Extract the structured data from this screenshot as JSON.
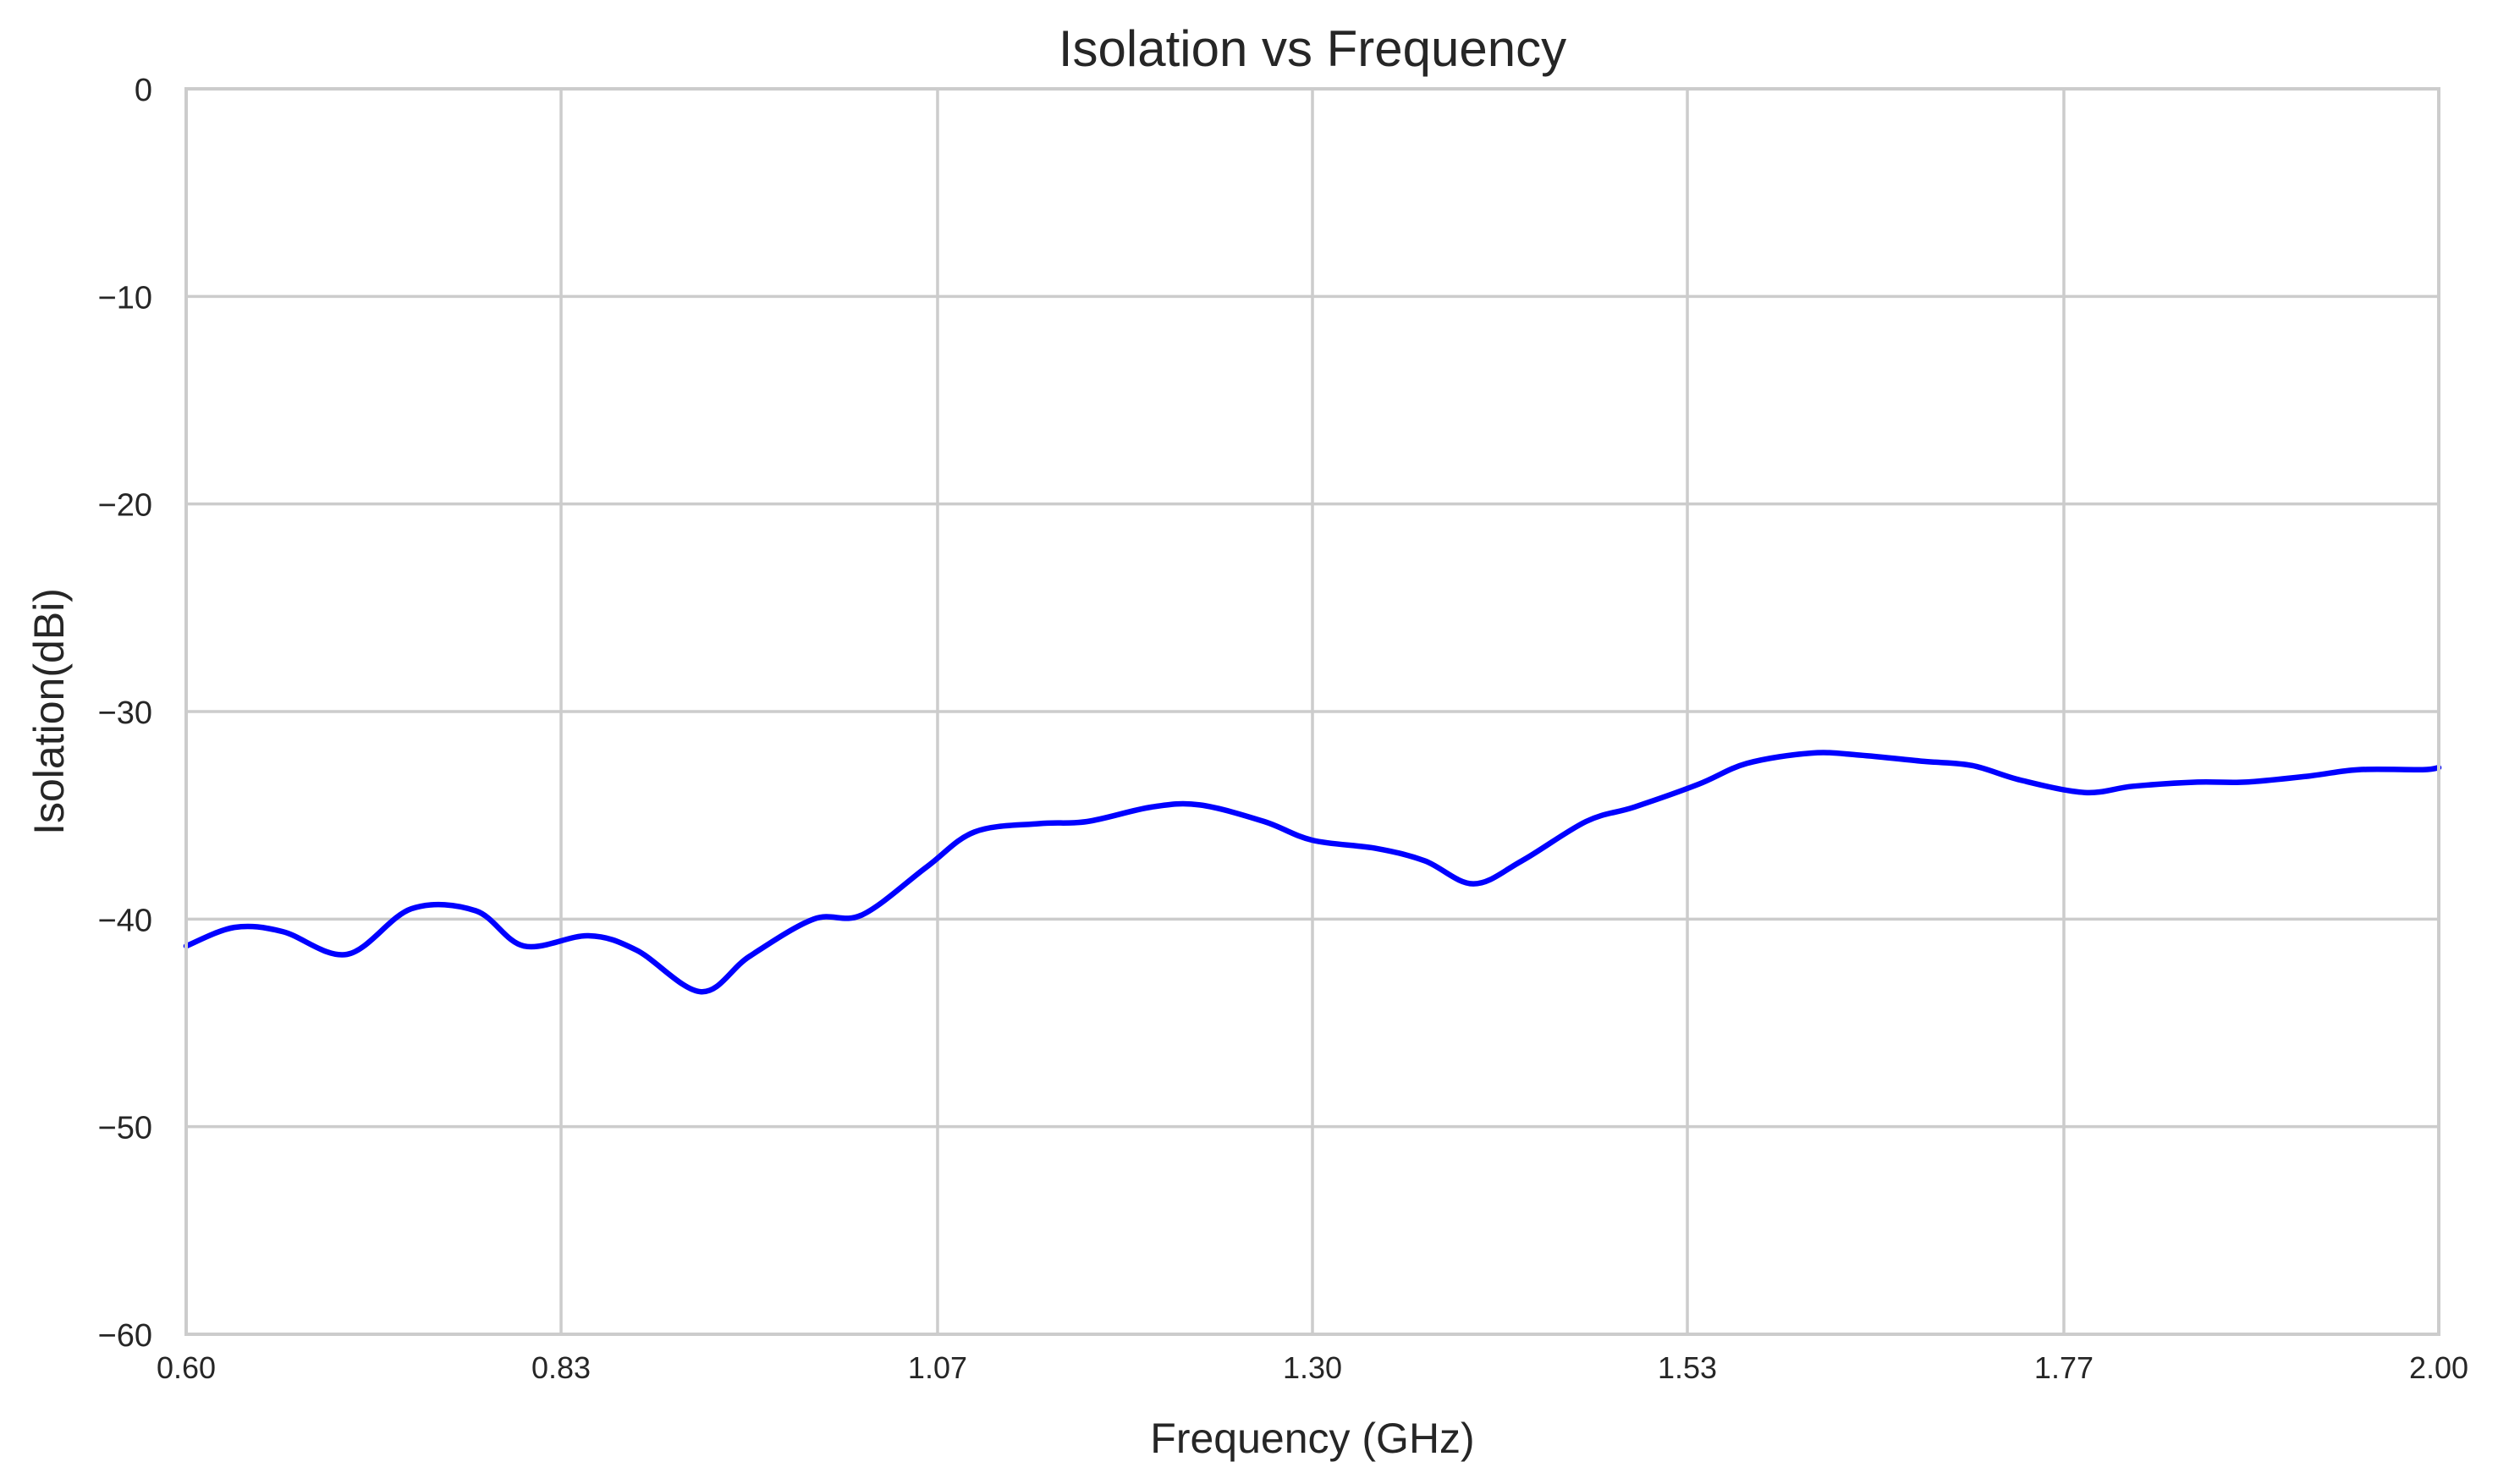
{
  "chart_data": {
    "type": "line",
    "title": "Isolation vs Frequency",
    "xlabel": "Frequency (GHz)",
    "ylabel": "Isolation(dBi)",
    "xlim": [
      0.6,
      2.0
    ],
    "ylim": [
      -60,
      0
    ],
    "x_ticks": [
      0.6,
      0.833,
      1.067,
      1.3,
      1.533,
      1.767,
      2.0
    ],
    "x_tick_labels": [
      "0.60",
      "0.83",
      "1.07",
      "1.30",
      "1.53",
      "1.77",
      "2.00"
    ],
    "y_ticks": [
      0,
      -10,
      -20,
      -30,
      -40,
      -50,
      -60
    ],
    "y_tick_labels": [
      "0",
      "−10",
      "−20",
      "−30",
      "−40",
      "−50",
      "−60"
    ],
    "grid": true,
    "line_color": "#0000ff",
    "series": [
      {
        "x": [
          0.6,
          0.63,
          0.66,
          0.7,
          0.74,
          0.78,
          0.81,
          0.85,
          0.88,
          0.92,
          0.95,
          0.99,
          1.02,
          1.06,
          1.09,
          1.13,
          1.16,
          1.2,
          1.23,
          1.27,
          1.3,
          1.34,
          1.37,
          1.4,
          1.43,
          1.47,
          1.5,
          1.54,
          1.57,
          1.61,
          1.64,
          1.68,
          1.71,
          1.74,
          1.78,
          1.81,
          1.85,
          1.88,
          1.92,
          1.95,
          1.99,
          2.0
        ],
        "y": [
          -41.3,
          -40.4,
          -40.6,
          -41.7,
          -39.5,
          -39.6,
          -41.3,
          -40.8,
          -41.5,
          -43.5,
          -41.8,
          -40.0,
          -39.8,
          -37.5,
          -35.8,
          -35.4,
          -35.3,
          -34.6,
          -34.5,
          -35.3,
          -36.2,
          -36.6,
          -37.2,
          -38.3,
          -37.2,
          -35.3,
          -34.6,
          -33.5,
          -32.5,
          -32.0,
          -32.1,
          -32.4,
          -32.6,
          -33.3,
          -33.9,
          -33.6,
          -33.4,
          -33.4,
          -33.1,
          -32.8,
          -32.8,
          -32.7
        ]
      }
    ]
  }
}
